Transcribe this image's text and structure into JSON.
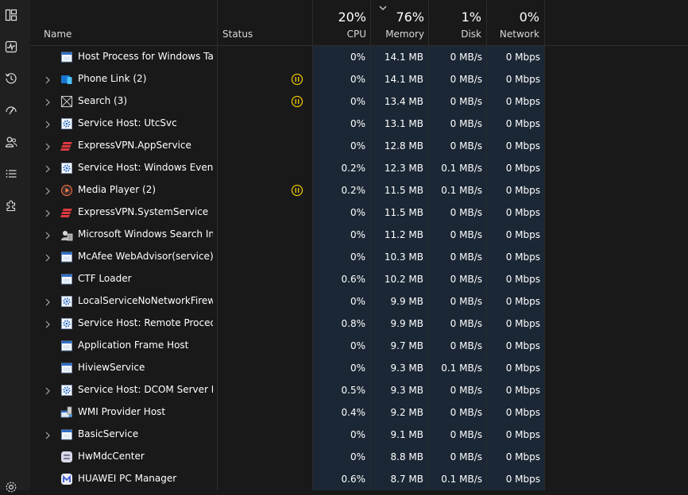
{
  "sidebar": {
    "items": [
      {
        "icon": "processes-icon"
      },
      {
        "icon": "performance-icon"
      },
      {
        "icon": "app-history-icon"
      },
      {
        "icon": "startup-apps-icon"
      },
      {
        "icon": "users-icon"
      },
      {
        "icon": "details-icon"
      },
      {
        "icon": "services-icon"
      },
      {
        "icon": "settings-icon"
      }
    ]
  },
  "header": {
    "name_label": "Name",
    "status_label": "Status",
    "cpu": {
      "percent": "20%",
      "label": "CPU"
    },
    "memory": {
      "percent": "76%",
      "label": "Memory"
    },
    "disk": {
      "percent": "1%",
      "label": "Disk"
    },
    "network": {
      "percent": "0%",
      "label": "Network"
    }
  },
  "colors": {
    "background": "#191919",
    "sidebar": "#202020",
    "highlight_column": "#1b2735",
    "suspended_status": "#e8c100",
    "expressvpn": "#da3940"
  },
  "processes": [
    {
      "name": "Host Process for Windows Tasks",
      "expandable": false,
      "icon": "window-icon",
      "status": "",
      "cpu": "0%",
      "memory": "14.1 MB",
      "disk": "0 MB/s",
      "network": "0 Mbps"
    },
    {
      "name": "Phone Link (2)",
      "expandable": true,
      "icon": "phone-link-icon",
      "status": "suspended",
      "cpu": "0%",
      "memory": "14.1 MB",
      "disk": "0 MB/s",
      "network": "0 Mbps"
    },
    {
      "name": "Search (3)",
      "expandable": true,
      "icon": "search-app-icon",
      "status": "suspended",
      "cpu": "0%",
      "memory": "13.4 MB",
      "disk": "0 MB/s",
      "network": "0 Mbps"
    },
    {
      "name": "Service Host: UtcSvc",
      "expandable": true,
      "icon": "gear-icon",
      "status": "",
      "cpu": "0%",
      "memory": "13.1 MB",
      "disk": "0 MB/s",
      "network": "0 Mbps"
    },
    {
      "name": "ExpressVPN.AppService",
      "expandable": true,
      "icon": "expressvpn-icon",
      "status": "",
      "cpu": "0%",
      "memory": "12.8 MB",
      "disk": "0 MB/s",
      "network": "0 Mbps"
    },
    {
      "name": "Service Host: Windows Event ...",
      "expandable": true,
      "icon": "gear-icon",
      "status": "",
      "cpu": "0.2%",
      "memory": "12.3 MB",
      "disk": "0.1 MB/s",
      "network": "0 Mbps"
    },
    {
      "name": "Media Player (2)",
      "expandable": true,
      "icon": "media-player-icon",
      "status": "suspended",
      "cpu": "0.2%",
      "memory": "11.5 MB",
      "disk": "0.1 MB/s",
      "network": "0 Mbps"
    },
    {
      "name": "ExpressVPN.SystemService",
      "expandable": true,
      "icon": "expressvpn-icon",
      "status": "",
      "cpu": "0%",
      "memory": "11.5 MB",
      "disk": "0 MB/s",
      "network": "0 Mbps"
    },
    {
      "name": "Microsoft Windows Search In...",
      "expandable": true,
      "icon": "search-indexer-icon",
      "status": "",
      "cpu": "0%",
      "memory": "11.2 MB",
      "disk": "0 MB/s",
      "network": "0 Mbps"
    },
    {
      "name": "McAfee WebAdvisor(service)",
      "expandable": true,
      "icon": "window-icon",
      "status": "",
      "cpu": "0%",
      "memory": "10.3 MB",
      "disk": "0 MB/s",
      "network": "0 Mbps"
    },
    {
      "name": "CTF Loader",
      "expandable": false,
      "icon": "window-icon",
      "status": "",
      "cpu": "0.6%",
      "memory": "10.2 MB",
      "disk": "0 MB/s",
      "network": "0 Mbps"
    },
    {
      "name": "LocalServiceNoNetworkFirewa...",
      "expandable": true,
      "icon": "gear-icon",
      "status": "",
      "cpu": "0%",
      "memory": "9.9 MB",
      "disk": "0 MB/s",
      "network": "0 Mbps"
    },
    {
      "name": "Service Host: Remote Procedu...",
      "expandable": true,
      "icon": "gear-icon",
      "status": "",
      "cpu": "0.8%",
      "memory": "9.9 MB",
      "disk": "0 MB/s",
      "network": "0 Mbps"
    },
    {
      "name": "Application Frame Host",
      "expandable": false,
      "icon": "window-icon",
      "status": "",
      "cpu": "0%",
      "memory": "9.7 MB",
      "disk": "0 MB/s",
      "network": "0 Mbps"
    },
    {
      "name": "HiviewService",
      "expandable": false,
      "icon": "window-icon",
      "status": "",
      "cpu": "0%",
      "memory": "9.3 MB",
      "disk": "0.1 MB/s",
      "network": "0 Mbps"
    },
    {
      "name": "Service Host: DCOM Server Pr...",
      "expandable": true,
      "icon": "gear-icon",
      "status": "",
      "cpu": "0.5%",
      "memory": "9.3 MB",
      "disk": "0 MB/s",
      "network": "0 Mbps"
    },
    {
      "name": "WMI Provider Host",
      "expandable": false,
      "icon": "wmi-icon",
      "status": "",
      "cpu": "0.4%",
      "memory": "9.2 MB",
      "disk": "0 MB/s",
      "network": "0 Mbps"
    },
    {
      "name": "BasicService",
      "expandable": true,
      "icon": "window-icon",
      "status": "",
      "cpu": "0%",
      "memory": "9.1 MB",
      "disk": "0 MB/s",
      "network": "0 Mbps"
    },
    {
      "name": "HwMdcCenter",
      "expandable": false,
      "icon": "hwmdc-icon",
      "status": "",
      "cpu": "0%",
      "memory": "8.8 MB",
      "disk": "0 MB/s",
      "network": "0 Mbps"
    },
    {
      "name": "HUAWEI PC Manager",
      "expandable": false,
      "icon": "huawei-pc-manager-icon",
      "status": "",
      "cpu": "0.6%",
      "memory": "8.7 MB",
      "disk": "0.1 MB/s",
      "network": "0 Mbps"
    }
  ]
}
